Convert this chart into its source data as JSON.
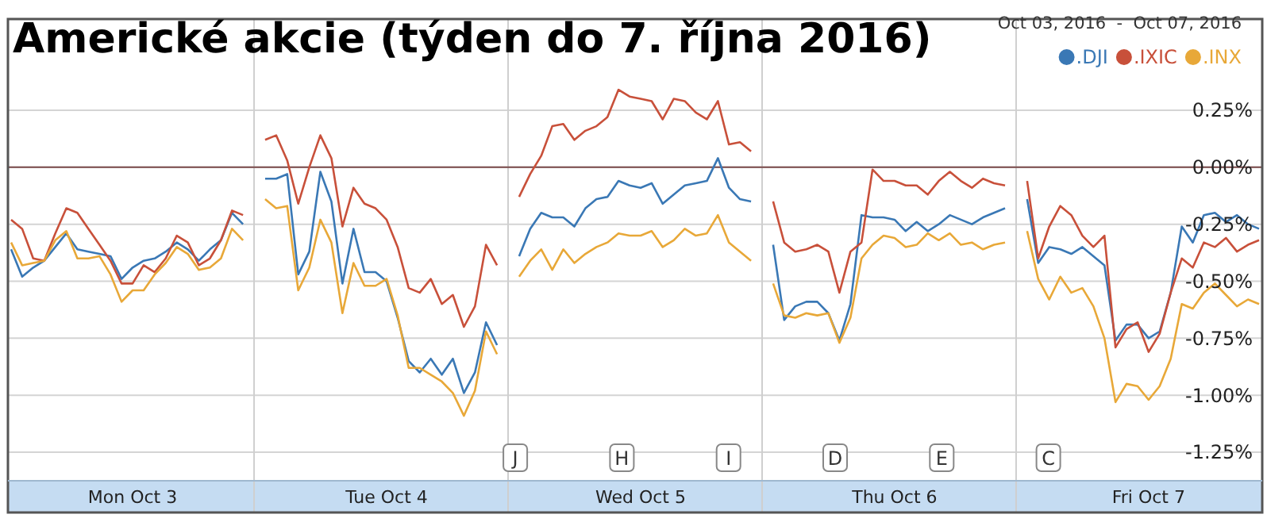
{
  "chart_data": {
    "type": "line",
    "title": "Americké akcie (týden do 7. října 2016)",
    "subtitle": "Oct 03, 2016  -  Oct 07, 2016",
    "categories": [
      null,
      null,
      null,
      null,
      null,
      null,
      null,
      null,
      null,
      null,
      null,
      "Mon Oct 3",
      null,
      null,
      null,
      null,
      null,
      null,
      null,
      null,
      null,
      null,
      null,
      null,
      null,
      null,
      null,
      null,
      null,
      null,
      null,
      null,
      null,
      null,
      "Tue Oct 4",
      null,
      null,
      null,
      null,
      null,
      null,
      null,
      null,
      null,
      null,
      null,
      null,
      null,
      null,
      null,
      null,
      null,
      null,
      null,
      null,
      null,
      null,
      "Wed Oct 5",
      null,
      null,
      null,
      null,
      null,
      null,
      null,
      null,
      null,
      null,
      null,
      null,
      null,
      null,
      null,
      null,
      null,
      null,
      null,
      null,
      null,
      null,
      "Thu Oct 6",
      null,
      null,
      null,
      null,
      null,
      null,
      null,
      null,
      null,
      null,
      null,
      null,
      null,
      null,
      null,
      null,
      null,
      null,
      null,
      null,
      null,
      null,
      "Fri Oct 7",
      null,
      null,
      null,
      null,
      null,
      null,
      null,
      null,
      null,
      null
    ],
    "series": [
      {
        "name": ".DJI",
        "color": "#3a78b5",
        "values": [
          -0.36,
          -0.48,
          -0.44,
          -0.41,
          -0.35,
          -0.29,
          -0.36,
          -0.37,
          -0.38,
          -0.39,
          -0.49,
          -0.44,
          -0.41,
          -0.4,
          -0.37,
          -0.33,
          -0.36,
          -0.41,
          -0.36,
          -0.32,
          -0.2,
          -0.25,
          null,
          -0.05,
          -0.05,
          -0.03,
          -0.47,
          -0.37,
          -0.02,
          -0.15,
          -0.51,
          -0.27,
          -0.46,
          -0.46,
          -0.5,
          -0.66,
          -0.85,
          -0.9,
          -0.84,
          -0.91,
          -0.84,
          -0.99,
          -0.9,
          -0.68,
          -0.78,
          null,
          -0.39,
          -0.27,
          -0.2,
          -0.22,
          -0.22,
          -0.26,
          -0.18,
          -0.14,
          -0.13,
          -0.06,
          -0.08,
          -0.09,
          -0.07,
          -0.16,
          -0.12,
          -0.08,
          -0.07,
          -0.06,
          0.04,
          -0.09,
          -0.14,
          -0.15,
          null,
          -0.34,
          -0.67,
          -0.61,
          -0.59,
          -0.59,
          -0.64,
          -0.76,
          -0.6,
          -0.21,
          -0.22,
          -0.22,
          -0.23,
          -0.28,
          -0.24,
          -0.28,
          -0.25,
          -0.21,
          -0.23,
          -0.25,
          -0.22,
          -0.2,
          -0.18,
          null,
          -0.14,
          -0.42,
          -0.35,
          -0.36,
          -0.38,
          -0.35,
          -0.39,
          -0.43,
          -0.76,
          -0.69,
          -0.69,
          -0.75,
          -0.72,
          -0.55,
          -0.26,
          -0.33,
          -0.21,
          -0.2,
          -0.24,
          -0.21,
          -0.25,
          -0.27
        ]
      },
      {
        "name": ".IXIC",
        "color": "#c8503a",
        "values": [
          -0.23,
          -0.27,
          -0.4,
          -0.41,
          -0.29,
          -0.18,
          -0.2,
          -0.27,
          -0.34,
          -0.41,
          -0.51,
          -0.51,
          -0.43,
          -0.46,
          -0.4,
          -0.3,
          -0.33,
          -0.43,
          -0.4,
          -0.32,
          -0.19,
          -0.21,
          null,
          0.12,
          0.14,
          0.03,
          -0.16,
          0,
          0.14,
          0.04,
          -0.26,
          -0.09,
          -0.16,
          -0.18,
          -0.23,
          -0.35,
          -0.53,
          -0.55,
          -0.49,
          -0.6,
          -0.56,
          -0.7,
          -0.61,
          -0.34,
          -0.43,
          null,
          -0.13,
          -0.03,
          0.05,
          0.18,
          0.19,
          0.12,
          0.16,
          0.18,
          0.22,
          0.34,
          0.31,
          0.3,
          0.29,
          0.21,
          0.3,
          0.29,
          0.24,
          0.21,
          0.29,
          0.1,
          0.11,
          0.07,
          null,
          -0.15,
          -0.33,
          -0.37,
          -0.36,
          -0.34,
          -0.37,
          -0.55,
          -0.37,
          -0.33,
          -0.01,
          -0.06,
          -0.06,
          -0.08,
          -0.08,
          -0.12,
          -0.06,
          -0.02,
          -0.06,
          -0.09,
          -0.05,
          -0.07,
          -0.08,
          null,
          -0.06,
          -0.4,
          -0.26,
          -0.17,
          -0.21,
          -0.3,
          -0.35,
          -0.3,
          -0.79,
          -0.71,
          -0.68,
          -0.81,
          -0.73,
          -0.55,
          -0.4,
          -0.44,
          -0.33,
          -0.35,
          -0.31,
          -0.37,
          -0.34,
          -0.32
        ]
      },
      {
        "name": ".INX",
        "color": "#e8a838",
        "values": [
          -0.33,
          -0.43,
          -0.42,
          -0.41,
          -0.32,
          -0.28,
          -0.4,
          -0.4,
          -0.39,
          -0.47,
          -0.59,
          -0.54,
          -0.54,
          -0.47,
          -0.42,
          -0.35,
          -0.38,
          -0.45,
          -0.44,
          -0.4,
          -0.27,
          -0.32,
          null,
          -0.14,
          -0.18,
          -0.17,
          -0.54,
          -0.44,
          -0.23,
          -0.33,
          -0.64,
          -0.42,
          -0.52,
          -0.52,
          -0.49,
          -0.65,
          -0.88,
          -0.88,
          -0.91,
          -0.94,
          -0.99,
          -1.09,
          -0.98,
          -0.72,
          -0.82,
          null,
          -0.48,
          -0.41,
          -0.36,
          -0.45,
          -0.36,
          -0.42,
          -0.38,
          -0.35,
          -0.33,
          -0.29,
          -0.3,
          -0.3,
          -0.28,
          -0.35,
          -0.32,
          -0.27,
          -0.3,
          -0.29,
          -0.21,
          -0.33,
          -0.37,
          -0.41,
          null,
          -0.51,
          -0.65,
          -0.66,
          -0.64,
          -0.65,
          -0.64,
          -0.77,
          -0.66,
          -0.4,
          -0.34,
          -0.3,
          -0.31,
          -0.35,
          -0.34,
          -0.29,
          -0.32,
          -0.29,
          -0.34,
          -0.33,
          -0.36,
          -0.34,
          -0.33,
          null,
          -0.28,
          -0.49,
          -0.58,
          -0.48,
          -0.55,
          -0.53,
          -0.61,
          -0.75,
          -1.03,
          -0.95,
          -0.96,
          -1.02,
          -0.96,
          -0.84,
          -0.6,
          -0.62,
          -0.55,
          -0.51,
          -0.56,
          -0.61,
          -0.58,
          -0.6
        ]
      }
    ],
    "ylim": [
      -1.375,
      0.65
    ],
    "yticks": [
      {
        "value": 0.25,
        "label": "0.25%"
      },
      {
        "value": 0,
        "label": "0.00%"
      },
      {
        "value": -0.25,
        "label": "-0.25%"
      },
      {
        "value": -0.5,
        "label": "-0.50%"
      },
      {
        "value": -0.75,
        "label": "-0.75%"
      },
      {
        "value": -1,
        "label": "-1.00%"
      },
      {
        "value": -1.25,
        "label": "-1.25%"
      }
    ],
    "grid": "y",
    "ref_lines": [
      {
        "axis": "y",
        "value": 0,
        "color": "#7a4a4a"
      }
    ],
    "annotations": [
      "J",
      "H",
      "I",
      "D",
      "E",
      "C"
    ],
    "legend": "top right",
    "marker": "none",
    "line_style": "solid"
  }
}
